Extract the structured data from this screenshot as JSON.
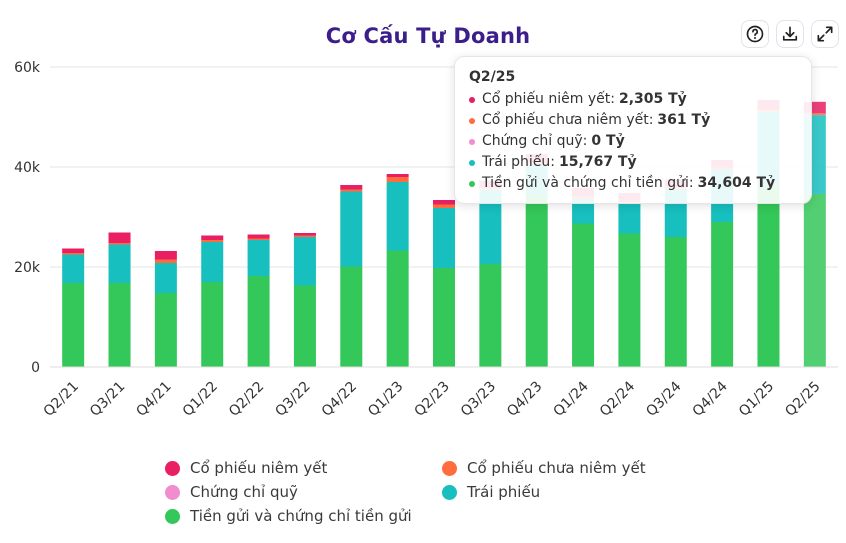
{
  "title": "Cơ Cấu Tự Doanh",
  "icons": [
    "help-icon",
    "download-icon",
    "expand-icon"
  ],
  "colors": {
    "listed_stocks": "#e91e63",
    "unlisted_stocks": "#ff6d3f",
    "fund_certificates": "#f08ccf",
    "bonds": "#17bfbf",
    "deposits": "#34c759",
    "title": "#3b1e8a"
  },
  "chart_data": {
    "type": "bar",
    "stacked": true,
    "title": "Cơ Cấu Tự Doanh",
    "categories": [
      "Q2/21",
      "Q3/21",
      "Q4/21",
      "Q1/22",
      "Q2/22",
      "Q3/22",
      "Q4/22",
      "Q1/23",
      "Q2/23",
      "Q3/23",
      "Q4/23",
      "Q1/24",
      "Q2/24",
      "Q3/24",
      "Q4/24",
      "Q1/25",
      "Q2/25"
    ],
    "series": [
      {
        "name": "Tiền gửi và chứng chỉ tiền gửi",
        "key": "deposits",
        "color": "#34c759",
        "values": [
          16800,
          16800,
          14800,
          17000,
          18200,
          16300,
          20100,
          23300,
          19800,
          20600,
          34500,
          28700,
          26700,
          26000,
          29000,
          36500,
          34604
        ]
      },
      {
        "name": "Trái phiếu",
        "key": "bonds",
        "color": "#17bfbf",
        "values": [
          5700,
          7700,
          6000,
          8000,
          7200,
          9700,
          15000,
          13700,
          12000,
          14800,
          6000,
          5000,
          6000,
          9500,
          10500,
          14500,
          15767
        ]
      },
      {
        "name": "Chứng chỉ quỹ",
        "key": "fund_certificates",
        "color": "#f08ccf",
        "values": [
          0,
          0,
          0,
          0,
          0,
          0,
          0,
          0,
          0,
          0,
          0,
          0,
          0,
          0,
          0,
          0,
          0
        ]
      },
      {
        "name": "Cổ phiếu chưa niêm yết",
        "key": "unlisted_stocks",
        "color": "#ff6d3f",
        "values": [
          300,
          300,
          700,
          400,
          300,
          300,
          400,
          1000,
          700,
          400,
          400,
          400,
          400,
          400,
          400,
          400,
          361
        ]
      },
      {
        "name": "Cổ phiếu niêm yết",
        "key": "listed_stocks",
        "color": "#e91e63",
        "values": [
          900,
          2100,
          1700,
          900,
          800,
          500,
          900,
          600,
          900,
          1500,
          1700,
          1700,
          1700,
          1600,
          1500,
          2000,
          2305
        ]
      }
    ],
    "ylim": [
      0,
      60000
    ],
    "yticks": [
      0,
      20000,
      40000,
      60000
    ],
    "ytick_labels": [
      "0",
      "20k",
      "40k",
      "60k"
    ],
    "xlabel": "",
    "ylabel": "",
    "grid": true,
    "legend": {
      "position": "bottom",
      "items": [
        "Cổ phiếu niêm yết",
        "Cổ phiếu chưa niêm yết",
        "Chứng chỉ quỹ",
        "Trái phiếu",
        "Tiền gửi và chứng chỉ tiền gửi"
      ]
    },
    "highlighted_category": "Q2/25",
    "tooltip": {
      "title": "Q2/25",
      "rows": [
        {
          "label": "Cổ phiếu niêm yết:",
          "value": "2,305 Tỷ",
          "color": "#e91e63"
        },
        {
          "label": "Cổ phiếu chưa niêm yết:",
          "value": "361 Tỷ",
          "color": "#ff6d3f"
        },
        {
          "label": "Chứng chỉ quỹ:",
          "value": "0 Tỷ",
          "color": "#f08ccf"
        },
        {
          "label": "Trái phiếu:",
          "value": "15,767 Tỷ",
          "color": "#17bfbf"
        },
        {
          "label": "Tiền gửi và chứng chỉ tiền gửi:",
          "value": "34,604 Tỷ",
          "color": "#34c759"
        }
      ]
    }
  }
}
